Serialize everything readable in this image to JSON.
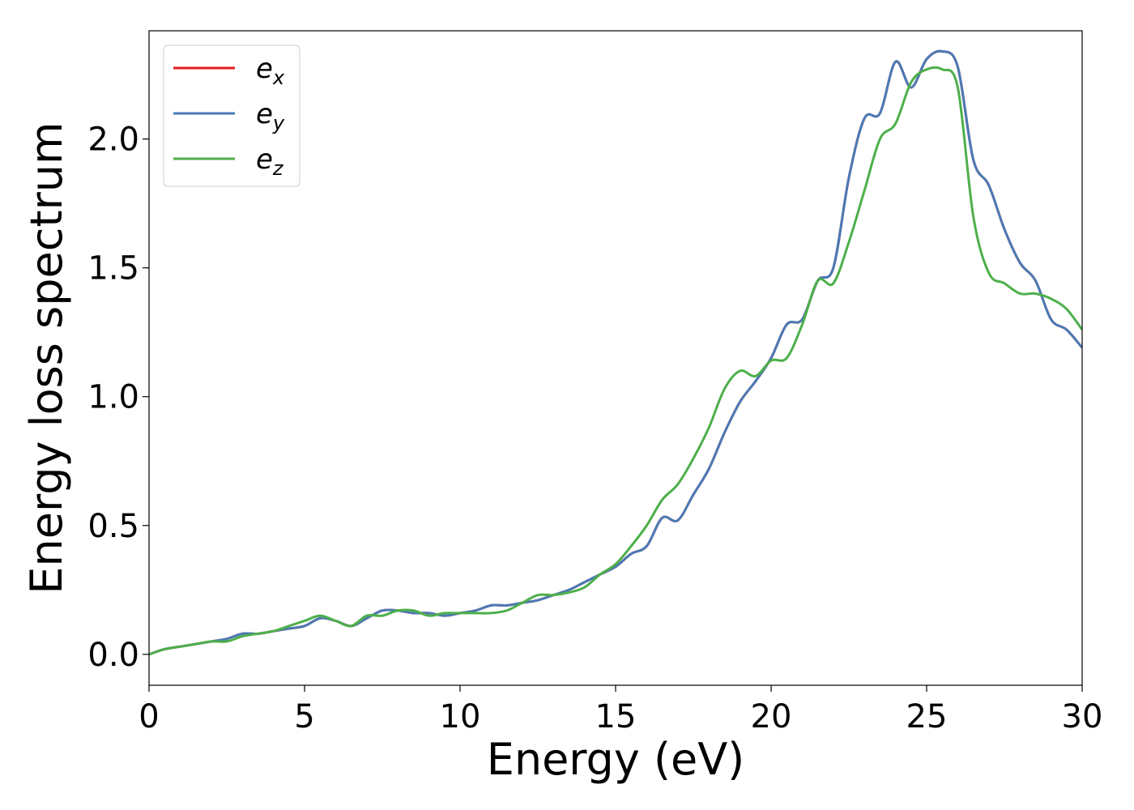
{
  "chart_data": {
    "type": "line",
    "xlabel": "Energy (eV)",
    "ylabel": "Energy loss spectrum",
    "xlim": [
      0,
      30
    ],
    "ylim": [
      -0.12,
      2.42
    ],
    "xticks": [
      0,
      5,
      10,
      15,
      20,
      25,
      30
    ],
    "xtick_labels": [
      "0",
      "5",
      "10",
      "15",
      "20",
      "25",
      "30"
    ],
    "yticks": [
      0.0,
      0.5,
      1.0,
      1.5,
      2.0
    ],
    "ytick_labels": [
      "0.0",
      "0.5",
      "1.0",
      "1.5",
      "2.0"
    ],
    "grid": false,
    "legend_position": "top-left",
    "x": [
      0,
      0.5,
      1,
      1.5,
      2,
      2.5,
      3,
      3.5,
      4,
      4.5,
      5,
      5.5,
      6,
      6.5,
      7,
      7.5,
      8,
      8.5,
      9,
      9.5,
      10,
      10.5,
      11,
      11.5,
      12,
      12.5,
      13,
      13.5,
      14,
      14.5,
      15,
      15.5,
      16,
      16.5,
      17,
      17.5,
      18,
      18.5,
      19,
      19.5,
      20,
      20.5,
      21,
      21.5,
      22,
      22.5,
      23,
      23.5,
      24,
      24.5,
      25,
      25.5,
      26,
      26.5,
      27,
      27.5,
      28,
      28.5,
      29,
      29.5,
      30
    ],
    "series": [
      {
        "name": "e",
        "subscript": "x",
        "color": "#e41a1c",
        "values": [
          0.0,
          0.02,
          0.03,
          0.04,
          0.05,
          0.06,
          0.08,
          0.08,
          0.09,
          0.1,
          0.11,
          0.14,
          0.13,
          0.11,
          0.14,
          0.17,
          0.17,
          0.16,
          0.16,
          0.15,
          0.16,
          0.17,
          0.19,
          0.19,
          0.2,
          0.21,
          0.23,
          0.25,
          0.28,
          0.31,
          0.34,
          0.39,
          0.42,
          0.53,
          0.52,
          0.62,
          0.72,
          0.86,
          0.98,
          1.06,
          1.15,
          1.28,
          1.3,
          1.45,
          1.5,
          1.85,
          2.08,
          2.1,
          2.3,
          2.2,
          2.31,
          2.34,
          2.28,
          1.92,
          1.82,
          1.65,
          1.52,
          1.45,
          1.3,
          1.26,
          1.19
        ]
      },
      {
        "name": "e",
        "subscript": "y",
        "color": "#4a7ab5",
        "values": [
          0.0,
          0.02,
          0.03,
          0.04,
          0.05,
          0.06,
          0.08,
          0.08,
          0.09,
          0.1,
          0.11,
          0.14,
          0.13,
          0.11,
          0.14,
          0.17,
          0.17,
          0.16,
          0.16,
          0.15,
          0.16,
          0.17,
          0.19,
          0.19,
          0.2,
          0.21,
          0.23,
          0.25,
          0.28,
          0.31,
          0.34,
          0.39,
          0.42,
          0.53,
          0.52,
          0.62,
          0.72,
          0.86,
          0.98,
          1.06,
          1.15,
          1.28,
          1.3,
          1.45,
          1.5,
          1.85,
          2.08,
          2.1,
          2.3,
          2.2,
          2.31,
          2.34,
          2.28,
          1.92,
          1.82,
          1.65,
          1.52,
          1.45,
          1.3,
          1.26,
          1.19
        ]
      },
      {
        "name": "e",
        "subscript": "z",
        "color": "#4daf4a",
        "values": [
          0.0,
          0.02,
          0.03,
          0.04,
          0.05,
          0.05,
          0.07,
          0.08,
          0.09,
          0.11,
          0.13,
          0.15,
          0.13,
          0.11,
          0.15,
          0.15,
          0.17,
          0.17,
          0.15,
          0.16,
          0.16,
          0.16,
          0.16,
          0.17,
          0.2,
          0.23,
          0.23,
          0.24,
          0.26,
          0.31,
          0.35,
          0.42,
          0.5,
          0.6,
          0.66,
          0.76,
          0.88,
          1.03,
          1.1,
          1.08,
          1.14,
          1.15,
          1.28,
          1.45,
          1.44,
          1.6,
          1.8,
          2.0,
          2.06,
          2.22,
          2.27,
          2.27,
          2.2,
          1.7,
          1.48,
          1.44,
          1.4,
          1.4,
          1.38,
          1.34,
          1.26
        ]
      }
    ]
  }
}
